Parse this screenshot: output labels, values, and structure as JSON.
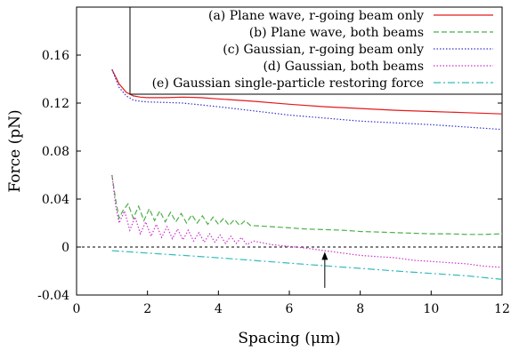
{
  "chart_data": {
    "type": "line",
    "xlabel": "Spacing (μm)",
    "ylabel": "Force (pN)",
    "xlim": [
      0,
      12
    ],
    "ylim": [
      -0.04,
      0.2
    ],
    "x_ticks": [
      0,
      2,
      4,
      6,
      8,
      10,
      12
    ],
    "y_ticks": [
      -0.04,
      0,
      0.04,
      0.08,
      0.12,
      0.16
    ],
    "x_tick_labels": [
      "0",
      "2",
      "4",
      "6",
      "8",
      "10",
      "12"
    ],
    "y_tick_labels": [
      "-0.04",
      "0",
      "0.04",
      "0.08",
      "0.12",
      "0.16"
    ],
    "legend_position": "top-right",
    "zero_line": true,
    "arrow_annotation": {
      "x": 7.0,
      "y_from": -0.034,
      "y_to": -0.004
    },
    "series": [
      {
        "name": "(a) Plane wave, r-going beam only",
        "color": "#e41a1c",
        "dash": "solid",
        "x": [
          1.0,
          1.2,
          1.4,
          1.6,
          1.8,
          2.0,
          2.5,
          3.0,
          3.5,
          4.0,
          5.0,
          6.0,
          7.0,
          8.0,
          9.0,
          10.0,
          11.0,
          12.0
        ],
        "y": [
          0.148,
          0.136,
          0.129,
          0.126,
          0.125,
          0.1245,
          0.1245,
          0.125,
          0.1245,
          0.1235,
          0.1215,
          0.119,
          0.117,
          0.1155,
          0.114,
          0.113,
          0.112,
          0.111
        ]
      },
      {
        "name": "(b) Plane wave, both beams",
        "color": "#4daf4a",
        "dash": "dashed",
        "x": [
          1.0,
          1.1,
          1.2,
          1.3,
          1.45,
          1.6,
          1.75,
          1.9,
          2.05,
          2.2,
          2.35,
          2.5,
          2.65,
          2.8,
          2.95,
          3.1,
          3.25,
          3.4,
          3.55,
          3.7,
          3.85,
          4.0,
          4.15,
          4.3,
          4.45,
          4.6,
          4.75,
          4.9,
          5.5,
          6.0,
          6.5,
          7.0,
          7.5,
          8.0,
          8.5,
          9.0,
          9.5,
          10.0,
          10.5,
          11.0,
          11.5,
          12.0
        ],
        "y": [
          0.06,
          0.04,
          0.024,
          0.03,
          0.036,
          0.024,
          0.034,
          0.022,
          0.032,
          0.022,
          0.03,
          0.021,
          0.029,
          0.021,
          0.028,
          0.02,
          0.027,
          0.02,
          0.026,
          0.019,
          0.025,
          0.019,
          0.024,
          0.018,
          0.023,
          0.018,
          0.022,
          0.018,
          0.017,
          0.016,
          0.015,
          0.0145,
          0.014,
          0.013,
          0.0125,
          0.012,
          0.0115,
          0.011,
          0.011,
          0.0105,
          0.0105,
          0.011
        ]
      },
      {
        "name": "(c) Gaussian, r-going beam only",
        "color": "#3333cc",
        "dash": "dotted",
        "x": [
          1.0,
          1.2,
          1.4,
          1.6,
          1.8,
          2.0,
          2.5,
          3.0,
          3.5,
          4.0,
          5.0,
          6.0,
          7.0,
          8.0,
          9.0,
          10.0,
          11.0,
          12.0
        ],
        "y": [
          0.148,
          0.133,
          0.126,
          0.1225,
          0.1215,
          0.121,
          0.1205,
          0.12,
          0.1185,
          0.117,
          0.1135,
          0.11,
          0.1075,
          0.105,
          0.1035,
          0.102,
          0.1,
          0.098
        ]
      },
      {
        "name": "(d) Gaussian, both beams",
        "color": "#cc33cc",
        "dash": "dotted",
        "x": [
          1.0,
          1.1,
          1.2,
          1.35,
          1.5,
          1.65,
          1.8,
          1.95,
          2.1,
          2.25,
          2.4,
          2.55,
          2.7,
          2.85,
          3.0,
          3.15,
          3.3,
          3.45,
          3.6,
          3.75,
          3.9,
          4.05,
          4.2,
          4.35,
          4.5,
          4.65,
          4.8,
          5.0,
          5.5,
          6.0,
          6.5,
          7.0,
          7.5,
          8.0,
          8.5,
          9.0,
          9.5,
          10.0,
          10.5,
          11.0,
          11.5,
          12.0
        ],
        "y": [
          0.06,
          0.035,
          0.02,
          0.03,
          0.014,
          0.025,
          0.011,
          0.021,
          0.009,
          0.019,
          0.008,
          0.017,
          0.007,
          0.015,
          0.006,
          0.014,
          0.005,
          0.012,
          0.004,
          0.011,
          0.004,
          0.01,
          0.003,
          0.009,
          0.003,
          0.008,
          0.002,
          0.005,
          0.002,
          0.0005,
          -0.001,
          -0.003,
          -0.005,
          -0.007,
          -0.008,
          -0.009,
          -0.011,
          -0.012,
          -0.013,
          -0.014,
          -0.016,
          -0.017
        ]
      },
      {
        "name": "(e) Gaussian single-particle restoring force",
        "color": "#33bbbb",
        "dash": "dashdot",
        "x": [
          1.0,
          2.0,
          3.0,
          4.0,
          5.0,
          6.0,
          7.0,
          8.0,
          9.0,
          10.0,
          11.0,
          12.0
        ],
        "y": [
          -0.003,
          -0.005,
          -0.007,
          -0.009,
          -0.0112,
          -0.0134,
          -0.0156,
          -0.0178,
          -0.02,
          -0.022,
          -0.024,
          -0.027
        ]
      }
    ]
  }
}
